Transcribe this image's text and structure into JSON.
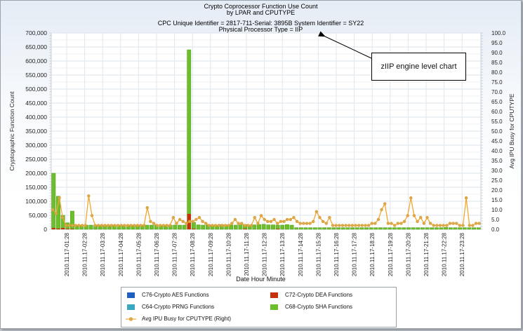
{
  "header": {
    "title_line1": "Crypto Coprocessor Function Use Count",
    "title_line2": "by LPAR and CPUTYPE",
    "subtitle_line1": "CPC Unique Identifier = 2817-711-Serial: 3895B  System Identifier = SY22",
    "subtitle_line2": "Physical Processor Type = IIP"
  },
  "annotation": {
    "text": "zIIP engine level chart"
  },
  "legend": {
    "items": [
      {
        "label": "C76-Crypto AES Functions",
        "color": "#1f5fbf"
      },
      {
        "label": "C72-Crypto DEA Functions",
        "color": "#c8300c"
      },
      {
        "label": "C64-Crypto PRNG Functions",
        "color": "#3aa7c0"
      },
      {
        "label": "C68-Crypto SHA Functions",
        "color": "#6cbf2a"
      },
      {
        "label": "Avg IPU Busy for CPUTYPE (Right)",
        "color": "#f0a830"
      }
    ]
  },
  "chart_data": {
    "type": "bar",
    "title": "Crypto Coprocessor Function Use Count by LPAR and CPUTYPE",
    "subtitle": "CPC Unique Identifier = 2817-711-Serial: 3895B  System Identifier = SY22 / Physical Processor Type = IIP",
    "xlabel": "Date Hour Minute",
    "ylabel": "Cryptographic Function Count",
    "y2label": "Avg IPU Busy for CPUTYPE",
    "ylim": [
      0,
      700000
    ],
    "y2lim": [
      0,
      100
    ],
    "yticks": [
      "0",
      "50,000",
      "100,000",
      "150,000",
      "200,000",
      "250,000",
      "300,000",
      "350,000",
      "400,000",
      "450,000",
      "500,000",
      "550,000",
      "600,000",
      "650,000",
      "700,000"
    ],
    "y2ticks": [
      "0.0",
      "5.0",
      "10.0",
      "15.0",
      "20.0",
      "25.0",
      "30.0",
      "35.0",
      "40.0",
      "45.0",
      "50.0",
      "55.0",
      "60.0",
      "65.0",
      "70.0",
      "75.0",
      "80.0",
      "85.0",
      "90.0",
      "95.0",
      "100.0"
    ],
    "xtick_labels": [
      "2010.11.17-01:28",
      "2010.11.17-02:28",
      "2010.11.17-03:28",
      "2010.11.17-04:28",
      "2010.11.17-05:28",
      "2010.11.17-06:28",
      "2010.11.17-07:28",
      "2010.11.17-08:28",
      "2010.11.17-09:28",
      "2010.11.17-10:28",
      "2010.11.17-11:28",
      "2010.11.17-12:28",
      "2010.11.17-13:28",
      "2010.11.17-14:28",
      "2010.11.17-15:28",
      "2010.11.17-16:28",
      "2010.11.17-17:28",
      "2010.11.17-18:28",
      "2010.11.17-19:28",
      "2010.11.17-20:28",
      "2010.11.17-21:28",
      "2010.11.17-22:28",
      "2010.11.17-23:28"
    ],
    "grid": true,
    "legend_position": "bottom",
    "series": [
      {
        "name": "C68-Crypto SHA Functions",
        "type": "bar",
        "axis": "left",
        "color": "#6cbf2a",
        "values": [
          200000,
          118000,
          50000,
          23000,
          65000,
          15000,
          15000,
          15000,
          15000,
          15000,
          15000,
          14000,
          15000,
          15000,
          15000,
          14000,
          15000,
          15000,
          15000,
          15000,
          15000,
          15000,
          15000,
          15000,
          15000,
          15000,
          15000,
          15000,
          15000,
          640000,
          25000,
          16000,
          15000,
          15000,
          15000,
          15000,
          17000,
          16000,
          15000,
          15000,
          16000,
          17000,
          15000,
          16000,
          17000,
          18000,
          16000,
          16000,
          15000,
          15000,
          17000,
          15000,
          6000,
          6000,
          6000,
          6000,
          6000,
          6000,
          6000,
          6000,
          6000,
          6000,
          6000,
          6000,
          6000,
          6000,
          6000,
          6000,
          6000,
          6000,
          6000,
          6000,
          6000,
          6000,
          6000,
          6000,
          6000,
          6000,
          6000,
          6000,
          6000,
          6000,
          6000,
          6000,
          7000,
          6000,
          6000,
          6000,
          6000,
          6000,
          6000,
          6000
        ]
      },
      {
        "name": "C72-Crypto DEA Functions",
        "type": "bar",
        "axis": "left",
        "color": "#c8300c",
        "values": [
          5000,
          3000,
          5000,
          2000,
          2000,
          0,
          0,
          0,
          0,
          0,
          0,
          0,
          0,
          0,
          0,
          0,
          0,
          0,
          0,
          0,
          0,
          0,
          0,
          0,
          0,
          0,
          0,
          0,
          0,
          55000,
          2000,
          0,
          0,
          0,
          0,
          0,
          0,
          0,
          0,
          0,
          0,
          2000,
          0,
          0,
          0,
          0,
          0,
          0,
          2000,
          0,
          0,
          0,
          0,
          0,
          0,
          0,
          0,
          0,
          0,
          0,
          0,
          0,
          0,
          0,
          0,
          0,
          0,
          0,
          0,
          0,
          0,
          0,
          0,
          0,
          0,
          0,
          0,
          0,
          0,
          0,
          0,
          0,
          0,
          0,
          0,
          0,
          0,
          0,
          0,
          0,
          0,
          0
        ]
      },
      {
        "name": "C76-Crypto AES Functions",
        "type": "bar",
        "axis": "left",
        "color": "#1f5fbf",
        "values": []
      },
      {
        "name": "C64-Crypto PRNG Functions",
        "type": "bar",
        "axis": "left",
        "color": "#3aa7c0",
        "values": []
      },
      {
        "name": "Avg IPU Busy for CPUTYPE (Right)",
        "type": "line",
        "axis": "right",
        "color": "#f0a830",
        "values": [
          10,
          8,
          16,
          6,
          2,
          2,
          2,
          2,
          2,
          2,
          2,
          17,
          7,
          2,
          2,
          2,
          2,
          2,
          2,
          2,
          2,
          2,
          2,
          2,
          2,
          2,
          2,
          2,
          2,
          11,
          4,
          3,
          2,
          2,
          2,
          2,
          2,
          6,
          3,
          5,
          4,
          3,
          4,
          4,
          5,
          6,
          4,
          3,
          2,
          2,
          2,
          2,
          2,
          2,
          2,
          3,
          5,
          3,
          3,
          2,
          2,
          2,
          6,
          3,
          7,
          5,
          4,
          4,
          5,
          3,
          4,
          4,
          5,
          5,
          6,
          4,
          3,
          3,
          3,
          3,
          4,
          9,
          6,
          4,
          3,
          6,
          2,
          2,
          2,
          2,
          2,
          2,
          2,
          2,
          2,
          2,
          2,
          2,
          3,
          3,
          5,
          10,
          13,
          3,
          3,
          2,
          3,
          3,
          4,
          7,
          16,
          7,
          4,
          6,
          3,
          6,
          3,
          2,
          2,
          2,
          2,
          2,
          3,
          3,
          3,
          2,
          2,
          16,
          2,
          2,
          3,
          3
        ]
      }
    ]
  }
}
